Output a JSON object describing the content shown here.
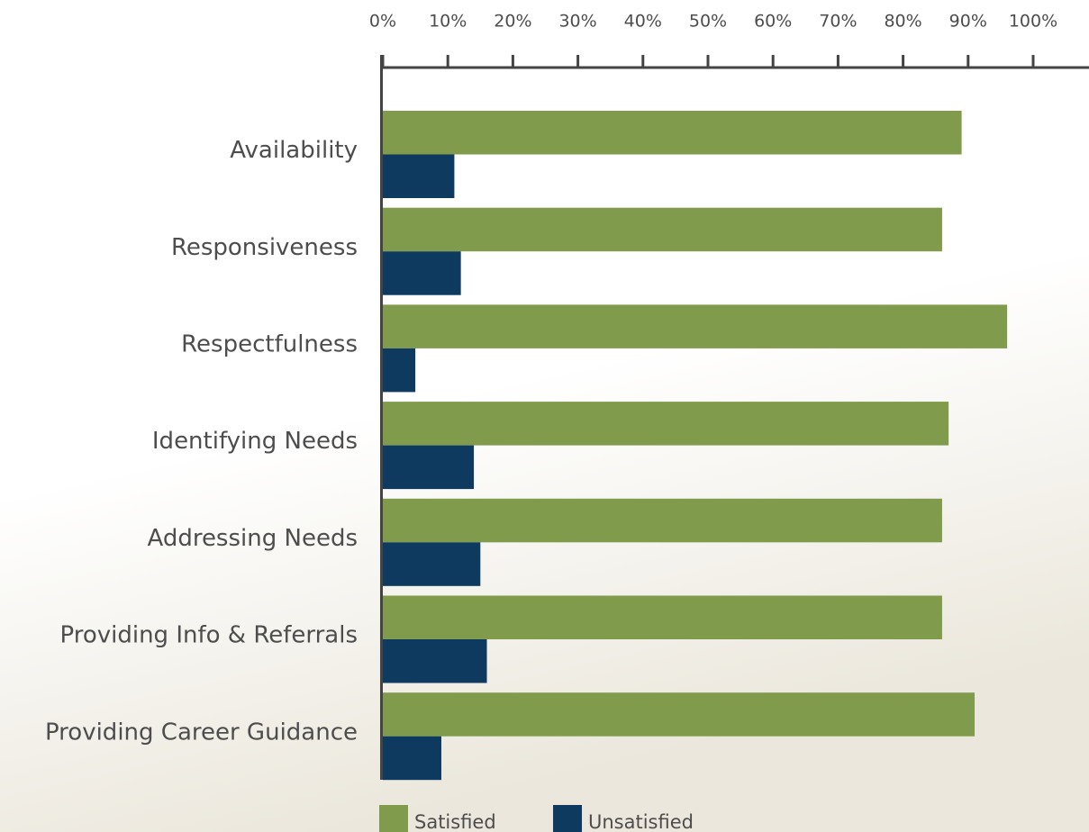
{
  "chart_data": {
    "type": "hbar",
    "categories": [
      "Availability",
      "Responsiveness",
      "Respectfulness",
      "Identifying Needs",
      "Addressing Needs",
      "Providing Info & Referrals",
      "Providing Career Guidance"
    ],
    "series": [
      {
        "name": "Satisfied",
        "color": "#7f9b4b",
        "values": [
          89,
          86,
          96,
          87,
          86,
          86,
          91
        ]
      },
      {
        "name": "Unsatisfied",
        "color": "#0d3a5e",
        "values": [
          11,
          12,
          5,
          14,
          15,
          16,
          9
        ]
      }
    ],
    "xlim": [
      0,
      100
    ],
    "xticks": [
      {
        "value": 0,
        "label": "0%"
      },
      {
        "value": 10,
        "label": "10%"
      },
      {
        "value": 20,
        "label": "20%"
      },
      {
        "value": 30,
        "label": "30%"
      },
      {
        "value": 40,
        "label": "40%"
      },
      {
        "value": 50,
        "label": "50%"
      },
      {
        "value": 60,
        "label": "60%"
      },
      {
        "value": 70,
        "label": "70%"
      },
      {
        "value": 80,
        "label": "80%"
      },
      {
        "value": 90,
        "label": "90%"
      },
      {
        "value": 100,
        "label": "100%"
      }
    ]
  }
}
